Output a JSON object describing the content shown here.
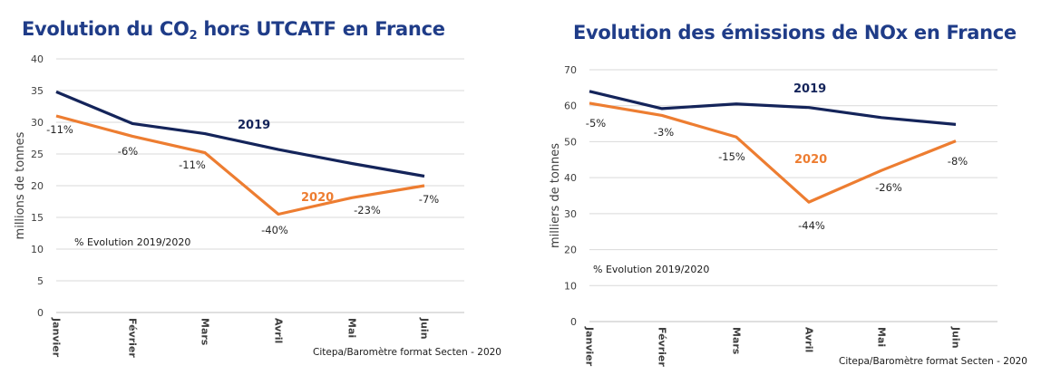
{
  "chart_data": [
    {
      "type": "line",
      "title": "Evolution du CO",
      "title_subscript": "2",
      "title_suffix": " hors UTCATF en France",
      "ylabel": "millions de tonnes",
      "xlabel": "",
      "ylim": [
        0,
        40
      ],
      "yticks": [
        0,
        5,
        10,
        15,
        20,
        25,
        30,
        35,
        40
      ],
      "categories": [
        "Janvier",
        "Février",
        "Mars",
        "Avril",
        "Mai",
        "Juin"
      ],
      "grid": true,
      "series": [
        {
          "name": "2019",
          "color": "#14245a",
          "values": [
            34.8,
            29.8,
            28.2,
            25.7,
            23.5,
            21.5
          ]
        },
        {
          "name": "2020",
          "color": "#ed7d31",
          "values": [
            31.0,
            27.8,
            25.2,
            15.5,
            18.1,
            20.0
          ]
        }
      ],
      "pct_labels": [
        "-11%",
        "-6%",
        "-11%",
        "-40%",
        "-23%",
        "-7%"
      ],
      "annotation": "% Evolution 2019/2020",
      "source": "Citepa/Baromètre format Secten - 2020"
    },
    {
      "type": "line",
      "title": "Evolution des émissions de NOx en France",
      "ylabel": "milliers de tonnes",
      "xlabel": "",
      "ylim": [
        0,
        70
      ],
      "yticks": [
        0,
        10,
        20,
        30,
        40,
        50,
        60,
        70
      ],
      "categories": [
        "Janvier",
        "Février",
        "Mars",
        "Avril",
        "Mai",
        "Juin"
      ],
      "grid": true,
      "series": [
        {
          "name": "2019",
          "color": "#14245a",
          "values": [
            64.0,
            59.2,
            60.5,
            59.5,
            56.7,
            54.8
          ]
        },
        {
          "name": "2020",
          "color": "#ed7d31",
          "values": [
            60.7,
            57.3,
            51.3,
            33.2,
            42.0,
            50.2
          ]
        }
      ],
      "pct_labels": [
        "-5%",
        "-3%",
        "-15%",
        "-44%",
        "-26%",
        "-8%"
      ],
      "annotation": "% Evolution 2019/2020",
      "source": "Citepa/Baromètre format Secten - 2020"
    }
  ]
}
